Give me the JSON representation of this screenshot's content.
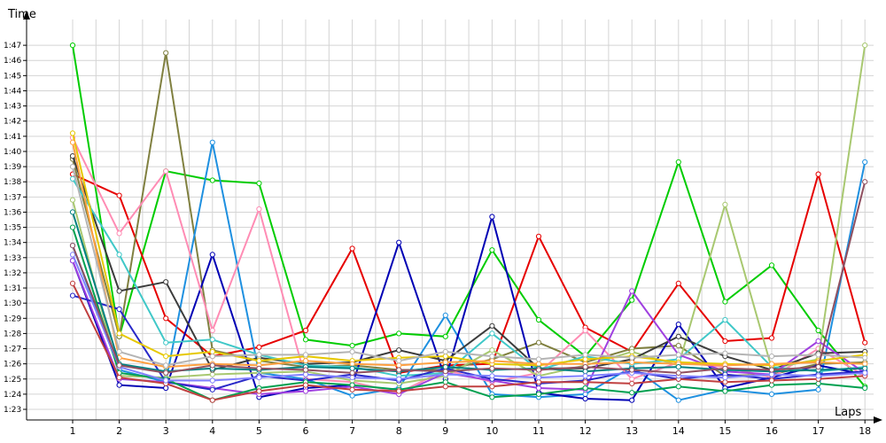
{
  "chart_data": {
    "type": "line",
    "xlabel": "Laps",
    "ylabel": "Time",
    "x": [
      1,
      2,
      3,
      4,
      5,
      6,
      7,
      8,
      9,
      10,
      11,
      12,
      13,
      14,
      15,
      16,
      17,
      18
    ],
    "y_ticks": [
      "1:23",
      "1:24",
      "1:25",
      "1:26",
      "1:27",
      "1:28",
      "1:29",
      "1:30",
      "1:31",
      "1:32",
      "1:33",
      "1:34",
      "1:35",
      "1:36",
      "1:37",
      "1:38",
      "1:39",
      "1:40",
      "1:41",
      "1:42",
      "1:43",
      "1:44",
      "1:45",
      "1:46",
      "1:47"
    ],
    "ylim": [
      "1:22.3",
      "1:48.7"
    ],
    "grid": true,
    "legend": "none",
    "series": [
      {
        "color": "#00cc00",
        "values": [
          107.0,
          87.8,
          98.7,
          98.1,
          97.9,
          87.6,
          87.2,
          88.0,
          87.8,
          93.5,
          88.9,
          86.5,
          90.2,
          99.3,
          90.1,
          92.5,
          88.2,
          84.5
        ]
      },
      {
        "color": "#e60000",
        "values": [
          98.5,
          97.1,
          89.0,
          86.5,
          87.1,
          88.2,
          93.6,
          85.4,
          85.9,
          86.0,
          94.4,
          88.4,
          86.8,
          91.3,
          87.5,
          87.7,
          98.5,
          87.4
        ]
      },
      {
        "color": "#808040",
        "values": [
          99.5,
          87.8,
          106.5,
          86.9,
          86.2,
          85.8,
          85.9,
          85.6,
          85.6,
          86.3,
          87.4,
          86.1,
          87.0,
          87.2,
          85.2,
          85.3,
          86.0,
          86.1
        ]
      },
      {
        "color": "#1e90e0",
        "values": [
          93.8,
          85.6,
          84.8,
          100.6,
          85.4,
          85.0,
          83.9,
          84.4,
          89.2,
          84.0,
          83.8,
          84.0,
          85.8,
          83.6,
          84.3,
          84.0,
          84.3,
          99.3
        ]
      },
      {
        "color": "#0000b4",
        "values": [
          92.8,
          84.6,
          84.4,
          93.2,
          83.8,
          84.4,
          84.6,
          94.0,
          85.0,
          95.7,
          84.1,
          83.7,
          83.6,
          88.6,
          84.4,
          85.1,
          85.9,
          85.3
        ]
      },
      {
        "color": "#ff8cb4",
        "values": [
          100.9,
          94.6,
          98.7,
          88.2,
          96.2,
          85.0,
          84.8,
          84.1,
          85.6,
          84.8,
          85.4,
          88.2,
          85.0,
          86.1,
          85.8,
          85.1,
          87.0,
          85.2
        ]
      },
      {
        "color": "#a8c870",
        "values": [
          96.8,
          85.2,
          85.1,
          85.3,
          85.4,
          85.5,
          84.9,
          84.7,
          85.2,
          86.9,
          85.2,
          85.9,
          86.8,
          85.9,
          96.5,
          85.7,
          86.3,
          107.0
        ]
      },
      {
        "color": "#3c3c3c",
        "values": [
          99.7,
          90.8,
          91.4,
          85.6,
          86.4,
          86.0,
          86.1,
          86.9,
          86.2,
          88.5,
          85.7,
          85.7,
          86.3,
          87.8,
          86.5,
          85.6,
          86.7,
          86.8
        ]
      },
      {
        "color": "#40c8c8",
        "values": [
          98.2,
          93.2,
          87.4,
          87.6,
          86.6,
          85.9,
          85.8,
          85.2,
          85.4,
          88.0,
          85.6,
          86.5,
          86.0,
          86.3,
          88.9,
          85.8,
          85.5,
          85.8
        ]
      },
      {
        "color": "#a040e0",
        "values": [
          92.8,
          85.0,
          84.8,
          84.4,
          84.0,
          84.2,
          84.5,
          84.0,
          85.4,
          84.9,
          84.4,
          84.3,
          90.8,
          86.6,
          85.5,
          85.3,
          87.5,
          85.4
        ]
      },
      {
        "color": "#2828c8",
        "values": [
          90.5,
          89.6,
          84.8,
          84.3,
          85.2,
          84.9,
          85.3,
          84.9,
          85.7,
          85.0,
          84.7,
          84.9,
          85.5,
          85.0,
          85.3,
          85.0,
          85.3,
          85.5
        ]
      },
      {
        "color": "#e6c800",
        "values": [
          101.2,
          88.0,
          86.5,
          86.8,
          86.2,
          86.5,
          86.2,
          86.4,
          86.5,
          86.0,
          85.9,
          86.3,
          86.5,
          86.1,
          86.0,
          85.9,
          86.2,
          86.6
        ]
      },
      {
        "color": "#ffa040",
        "values": [
          100.6,
          86.4,
          85.8,
          86.0,
          85.9,
          86.2,
          86.0,
          85.9,
          86.1,
          86.2,
          86.0,
          86.0,
          86.1,
          86.0,
          85.9,
          86.0,
          86.1,
          86.0
        ]
      },
      {
        "color": "#b4b4b4",
        "values": [
          99.0,
          86.8,
          85.9,
          86.5,
          86.6,
          86.6,
          86.8,
          86.2,
          86.8,
          86.5,
          86.3,
          86.6,
          86.4,
          86.6,
          86.7,
          86.5,
          86.6,
          86.4
        ]
      },
      {
        "color": "#008080",
        "values": [
          96.0,
          86.0,
          85.5,
          85.7,
          85.6,
          85.8,
          85.7,
          85.5,
          85.8,
          85.6,
          85.7,
          85.5,
          85.7,
          85.8,
          85.6,
          85.5,
          85.6,
          85.7
        ]
      },
      {
        "color": "#00a050",
        "values": [
          95.0,
          85.4,
          85.0,
          83.6,
          84.4,
          84.8,
          84.6,
          84.3,
          84.8,
          83.8,
          84.0,
          84.4,
          84.1,
          84.5,
          84.2,
          84.6,
          84.7,
          84.4
        ]
      },
      {
        "color": "#c04040",
        "values": [
          91.3,
          85.1,
          84.7,
          83.6,
          84.2,
          84.6,
          84.3,
          84.2,
          84.5,
          84.5,
          84.8,
          84.8,
          84.7,
          85.0,
          84.8,
          84.9,
          85.0,
          85.2
        ]
      },
      {
        "color": "#8080ff",
        "values": [
          93.2,
          85.8,
          84.9,
          84.9,
          85.1,
          85.3,
          85.1,
          85.0,
          85.3,
          85.2,
          85.1,
          85.2,
          85.4,
          85.2,
          85.1,
          85.3,
          85.2,
          85.4
        ]
      },
      {
        "color": "#905060",
        "values": [
          93.8,
          85.9,
          85.4,
          85.9,
          85.7,
          85.6,
          85.4,
          85.6,
          85.5,
          85.7,
          85.6,
          85.8,
          85.6,
          85.4,
          85.7,
          85.6,
          85.8,
          98.0
        ]
      }
    ]
  }
}
